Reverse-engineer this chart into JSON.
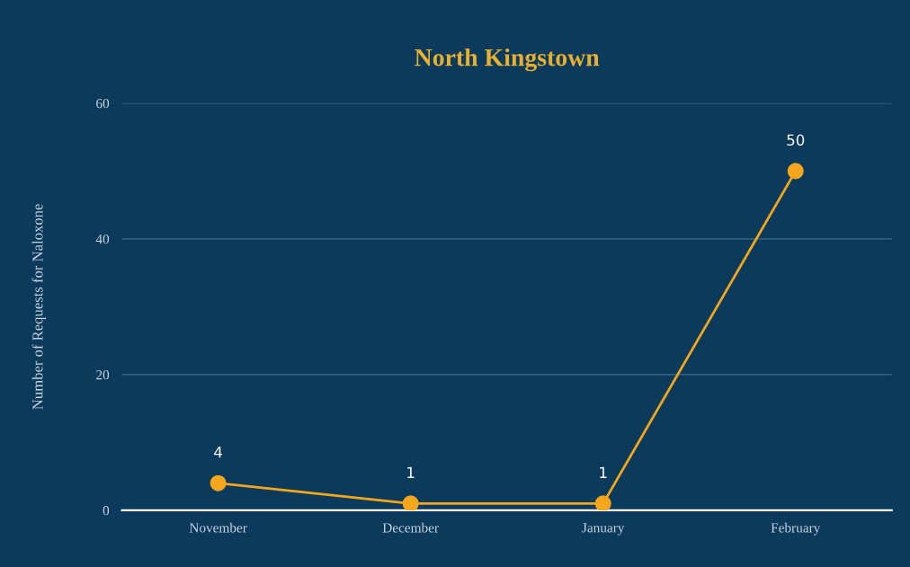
{
  "chart_data": {
    "type": "line",
    "title": "North Kingstown",
    "ylabel": "Number of Requests for Naloxone",
    "categories": [
      "November",
      "December",
      "January",
      "February"
    ],
    "series": [
      {
        "color": "#f5a71c",
        "values": [
          4,
          1,
          1,
          50
        ]
      }
    ],
    "ylim": [
      0,
      60
    ],
    "yticks": [
      0,
      20,
      40,
      60
    ],
    "grid": "y",
    "marker": "circle",
    "line_style": "solid",
    "data_labels": true,
    "legend": false
  }
}
